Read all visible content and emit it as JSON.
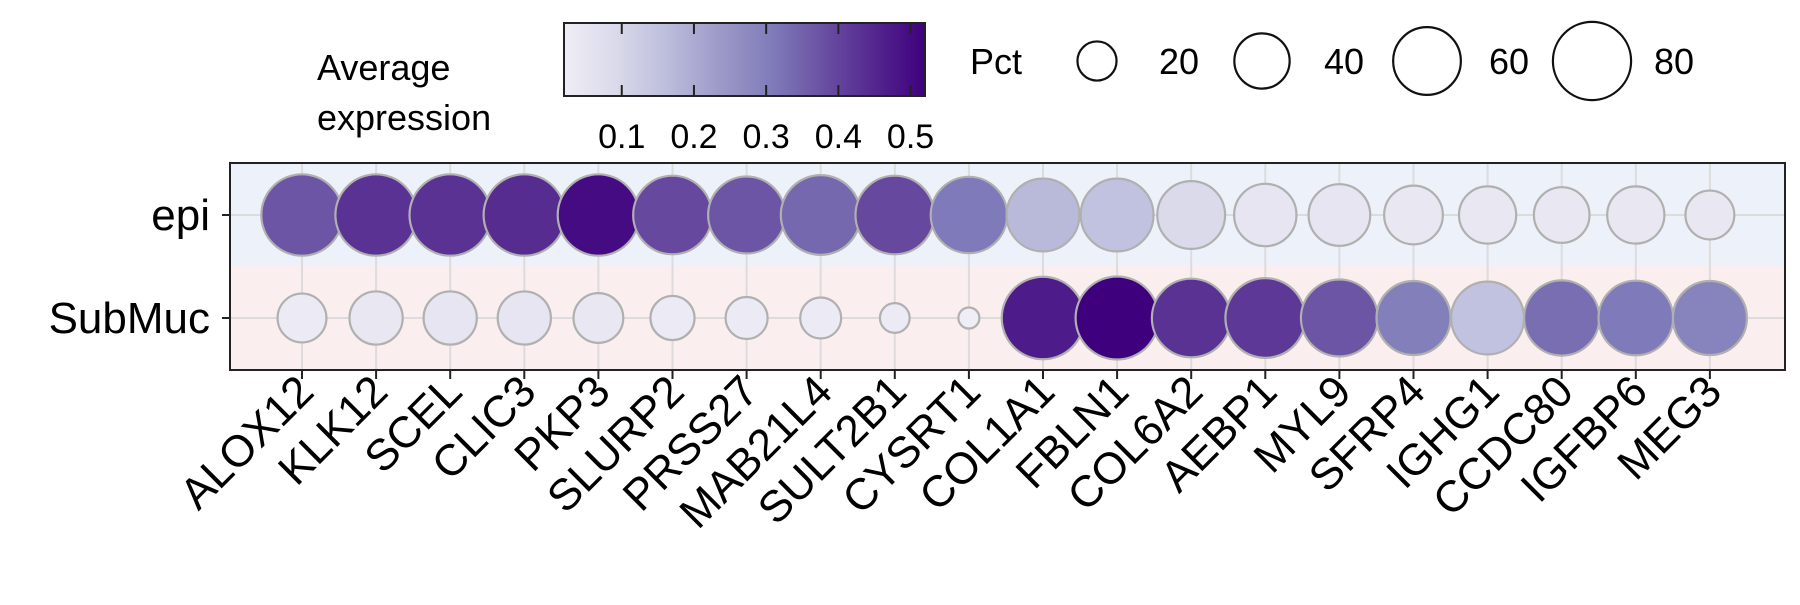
{
  "chart_data": {
    "type": "dotplot",
    "rows": [
      {
        "label": "epi",
        "band_color": "#edf2fa"
      },
      {
        "label": "SubMuc",
        "band_color": "#fbeeee"
      }
    ],
    "genes": [
      "ALOX12",
      "KLK12",
      "SCEL",
      "CLIC3",
      "PKP3",
      "SLURP2",
      "PRSS27",
      "MAB21L4",
      "SULT2B1",
      "CYSRT1",
      "COL1A1",
      "FBLN1",
      "COL6A2",
      "AEBP1",
      "MYL9",
      "SFRP4",
      "IGHG1",
      "CCDC80",
      "IGFBP6",
      "MEG3"
    ],
    "avg_expression": {
      "epi": [
        0.37,
        0.43,
        0.43,
        0.44,
        0.5,
        0.39,
        0.37,
        0.34,
        0.39,
        0.31,
        0.17,
        0.15,
        0.09,
        0.05,
        0.05,
        0.04,
        0.04,
        0.04,
        0.04,
        0.04
      ],
      "SubMuc": [
        0.03,
        0.04,
        0.05,
        0.05,
        0.04,
        0.03,
        0.03,
        0.03,
        0.03,
        0.02,
        0.47,
        0.52,
        0.43,
        0.42,
        0.37,
        0.3,
        0.15,
        0.33,
        0.31,
        0.29
      ]
    },
    "pct_expressed": {
      "epi": [
        75,
        75,
        75,
        75,
        75,
        70,
        67,
        72,
        70,
        66,
        60,
        60,
        52,
        44,
        43,
        39,
        37,
        35,
        37,
        27
      ],
      "SubMuc": [
        27,
        32,
        32,
        32,
        28,
        22,
        20,
        19,
        10,
        5,
        77,
        78,
        70,
        72,
        67,
        62,
        60,
        64,
        63,
        62
      ]
    },
    "color_legend": {
      "title_lines": [
        "Average",
        "expression"
      ],
      "ticks": [
        0.1,
        0.2,
        0.3,
        0.4,
        0.5
      ],
      "tick_labels": [
        "0.1",
        "0.2",
        "0.3",
        "0.4",
        "0.5"
      ],
      "range": [
        0.02,
        0.52
      ],
      "colormap": [
        "#efedf5",
        "#dadaeb",
        "#bcbddc",
        "#9e9ac8",
        "#807dba",
        "#6a51a3",
        "#54278f",
        "#3f007d"
      ]
    },
    "size_legend": {
      "title": "Pct",
      "values": [
        20,
        40,
        60,
        80
      ],
      "labels": [
        "20",
        "40",
        "60",
        "80"
      ]
    },
    "marker_edge_color": "#b0b0b0",
    "grid_color": "#dcdcdc"
  }
}
